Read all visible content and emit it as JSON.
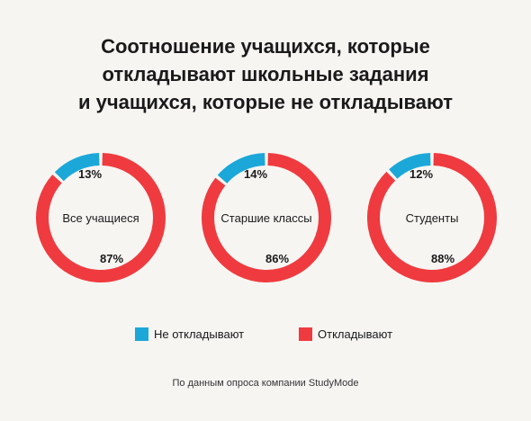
{
  "title": {
    "line1": "Соотношение учащихся, которые",
    "line2": "откладывают школьные задания",
    "line3": "и учащихся, которые не откладывают"
  },
  "chart_data": {
    "type": "pie",
    "charts": [
      {
        "label": "Все учащиеся",
        "values": [
          {
            "name": "Не откладывают",
            "value": 13
          },
          {
            "name": "Откладывают",
            "value": 87
          }
        ],
        "value_labels": [
          "13%",
          "87%"
        ]
      },
      {
        "label": "Старшие классы",
        "values": [
          {
            "name": "Не откладывают",
            "value": 14
          },
          {
            "name": "Откладывают",
            "value": 86
          }
        ],
        "value_labels": [
          "14%",
          "86%"
        ]
      },
      {
        "label": "Студенты",
        "values": [
          {
            "name": "Не откладывают",
            "value": 12
          },
          {
            "name": "Откладывают",
            "value": 88
          }
        ],
        "value_labels": [
          "12%",
          "88%"
        ]
      }
    ],
    "colors": {
      "not_delay": "#1ba8d9",
      "delay": "#ef3b3f"
    },
    "legend": {
      "not_delay": "Не откладывают",
      "delay": "Откладывают",
      "placement": "bottom"
    }
  },
  "footer": "По данным опроса компании StudyMode"
}
